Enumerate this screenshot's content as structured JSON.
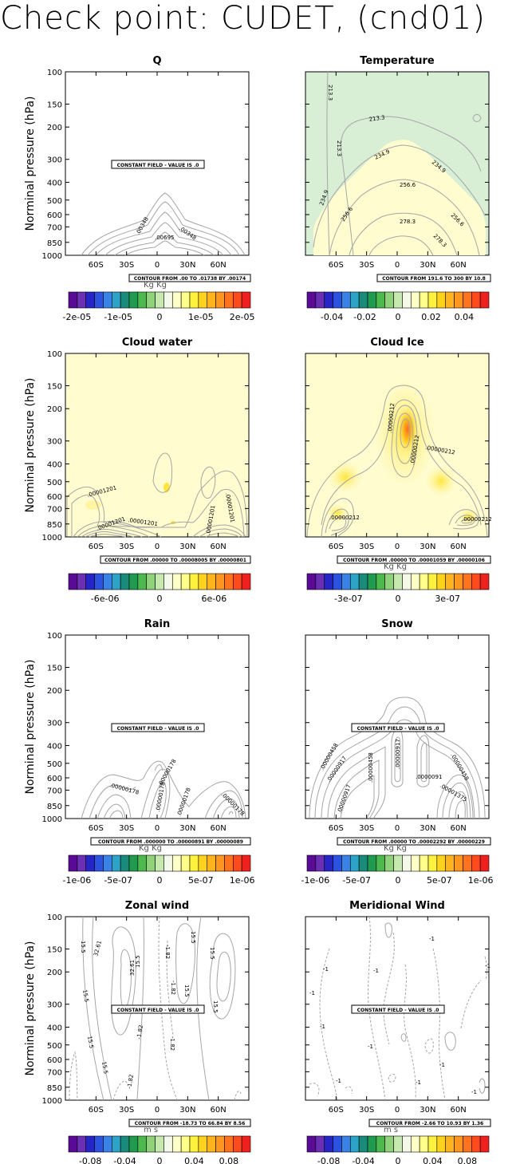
{
  "figure": {
    "title": "Check point: CUDET, (cnd01)",
    "ylabel": "Norminal pressure (hPa)",
    "pressure_ticks": [
      "100",
      "150",
      "200",
      "300",
      "400",
      "500",
      "600",
      "700",
      "850",
      "1000"
    ],
    "lat_ticks": [
      "60S",
      "30S",
      "0",
      "30N",
      "60N"
    ]
  },
  "colors": {
    "colorbar": [
      "#5a0a96",
      "#6a2fb5",
      "#2626c8",
      "#2c52e0",
      "#3a82e6",
      "#2ea3c8",
      "#1a8a7a",
      "#1f9a4e",
      "#4cb84e",
      "#8fd27a",
      "#c6e9b0",
      "#f4f8e8",
      "#ffffc8",
      "#ffff8a",
      "#fff23c",
      "#ffd21e",
      "#ffb41e",
      "#ff961e",
      "#ff731e",
      "#ff4a1e",
      "#f0201e"
    ],
    "contour": "#a6a6a6",
    "pale_yellow": "#fffcd0",
    "pale_green": "#d8efd6"
  },
  "chart_data": [
    {
      "type": "contour",
      "title": "Q",
      "xlabel": "",
      "ylabel": "Norminal pressure (hPa)",
      "x_ticks": [
        "60S",
        "30S",
        "0",
        "30N",
        "60N"
      ],
      "y_ticks": [
        "100",
        "150",
        "200",
        "300",
        "400",
        "500",
        "600",
        "700",
        "850",
        "1000"
      ],
      "contour_labels": [
        ".00348",
        ".00348",
        ".00695"
      ],
      "constant_field_note": "CONSTANT FIELD - VALUE IS .0",
      "contour_info": "CONTOUR FROM .00 TO .01738 BY .00174",
      "units": "Kg Kg",
      "colorbar_labels": [
        "-2e-05",
        "-1e-05",
        "0",
        "1e-05",
        "2e-05"
      ],
      "colorbar_range": [
        -2.2e-05,
        2.2e-05
      ]
    },
    {
      "type": "contour",
      "title": "Temperature",
      "x_ticks": [
        "60S",
        "30S",
        "0",
        "30N",
        "60N"
      ],
      "y_ticks": [
        "100",
        "150",
        "200",
        "300",
        "400",
        "500",
        "600",
        "700",
        "850",
        "1000"
      ],
      "contour_labels": [
        "213.3",
        "213.3",
        "213.3",
        "234.9",
        "234.9",
        "234.9",
        "256.6",
        "256.6",
        "256.6",
        "278.3",
        "278.3"
      ],
      "contour_info": "CONTOUR FROM 191.6 TO 300 BY 10.8",
      "colorbar_labels": [
        "-0.04",
        "-0.02",
        "0",
        "0.02",
        "0.04"
      ],
      "colorbar_range": [
        -0.055,
        0.055
      ]
    },
    {
      "type": "contour",
      "title": "Cloud water",
      "x_ticks": [
        "60S",
        "30S",
        "0",
        "30N",
        "60N"
      ],
      "y_ticks": [
        "100",
        "150",
        "200",
        "300",
        "400",
        "500",
        "600",
        "700",
        "850",
        "1000"
      ],
      "contour_labels": [
        ".00001201",
        ".00001201",
        ".00001201",
        ".00001201",
        ".00001201"
      ],
      "contour_info": "CONTOUR FROM .00000 TO .00008005 BY .00000801",
      "units": "Kg Kg",
      "colorbar_labels": [
        "-6e-06",
        "0",
        "6e-06"
      ],
      "colorbar_range": [
        -1e-05,
        1e-05
      ]
    },
    {
      "type": "contour",
      "title": "Cloud Ice",
      "x_ticks": [
        "60S",
        "30S",
        "0",
        "30N",
        "60N"
      ],
      "y_ticks": [
        "100",
        "150",
        "200",
        "300",
        "400",
        "500",
        "600",
        "700",
        "850",
        "1000"
      ],
      "contour_labels": [
        ".00000212",
        ".00000212",
        ".00000212",
        ".00000212",
        ".00000212"
      ],
      "contour_info": "CONTOUR FROM .00000 TO .00001059 BY .00000106",
      "units": "Kg Kg",
      "colorbar_labels": [
        "-3e-07",
        "0",
        "3e-07"
      ],
      "colorbar_range": [
        -5.5e-07,
        5.5e-07
      ]
    },
    {
      "type": "contour",
      "title": "Rain",
      "x_ticks": [
        "60S",
        "30S",
        "0",
        "30N",
        "60N"
      ],
      "y_ticks": [
        "100",
        "150",
        "200",
        "300",
        "400",
        "500",
        "600",
        "700",
        "850",
        "1000"
      ],
      "contour_labels": [
        ".00000178",
        ".00000178",
        ".00000178",
        ".00000178",
        ".00000178"
      ],
      "constant_field_note": "CONSTANT FIELD - VALUE IS .0",
      "contour_info": "CONTOUR FROM .000000 TO .00000891 BY .00000089",
      "units": "Kg Kg",
      "colorbar_labels": [
        "-1e-06",
        "-5e-07",
        "0",
        "5e-07",
        "1e-06"
      ],
      "colorbar_range": [
        -1.1e-06,
        1.1e-06
      ]
    },
    {
      "type": "contour",
      "title": "Snow",
      "x_ticks": [
        "60S",
        "30S",
        "0",
        "30N",
        "60N"
      ],
      "y_ticks": [
        "100",
        "150",
        "200",
        "300",
        "400",
        "500",
        "600",
        "700",
        "850",
        "1000"
      ],
      "contour_labels": [
        ".00000458",
        ".00000917",
        ".00000458",
        ".00000917",
        ".00000458",
        ".00000917",
        ".0000091",
        ".00001375"
      ],
      "constant_field_note": "CONSTANT FIELD - VALUE IS .0",
      "contour_info": "CONTOUR FROM .00000 TO .00002292 BY .00000229",
      "units": "Kg Kg",
      "colorbar_labels": [
        "-1e-06",
        "-5e-07",
        "0",
        "5e-07",
        "1e-06"
      ],
      "colorbar_range": [
        -1.1e-06,
        1.1e-06
      ]
    },
    {
      "type": "contour",
      "title": "Zonal wind",
      "x_ticks": [
        "60S",
        "30S",
        "0",
        "30N",
        "60N"
      ],
      "y_ticks": [
        "100",
        "150",
        "200",
        "300",
        "400",
        "500",
        "600",
        "700",
        "850",
        "1000"
      ],
      "contour_labels": [
        "15.5",
        "32.61",
        "32.61",
        "15.5",
        "-1.82",
        "-1.82",
        "15.5",
        "15.5",
        "15.5",
        "-1.82",
        "15.5",
        "15.5",
        "-1.82",
        "-1.82",
        "15.5",
        "15.5"
      ],
      "constant_field_note": "CONSTANT FIELD - VALUE IS .0",
      "contour_info": "CONTOUR FROM -18.73 TO 66.84 BY 8.56",
      "units": "m s",
      "colorbar_labels": [
        "-0.08",
        "-0.04",
        "0",
        "0.04",
        "0.08"
      ],
      "colorbar_range": [
        -0.105,
        0.105
      ]
    },
    {
      "type": "contour",
      "title": "Meridional Wind",
      "x_ticks": [
        "60S",
        "30S",
        "0",
        "30N",
        "60N"
      ],
      "y_ticks": [
        "100",
        "150",
        "200",
        "300",
        "400",
        "500",
        "600",
        "700",
        "850",
        "1000"
      ],
      "contour_labels": [
        "-1",
        "-1",
        "-1",
        "-1",
        "-1",
        "-1",
        "-1",
        "-1",
        "-1",
        "-1",
        "-1",
        "-1"
      ],
      "constant_field_note": "CONSTANT FIELD - VALUE IS .0",
      "contour_info": "CONTOUR FROM -2.66 TO 10.93 BY 1.36",
      "units": "m s",
      "colorbar_labels": [
        "-0.08",
        "-0.04",
        "0",
        "0.04",
        "0.08"
      ],
      "colorbar_range": [
        -0.105,
        0.105
      ]
    }
  ]
}
